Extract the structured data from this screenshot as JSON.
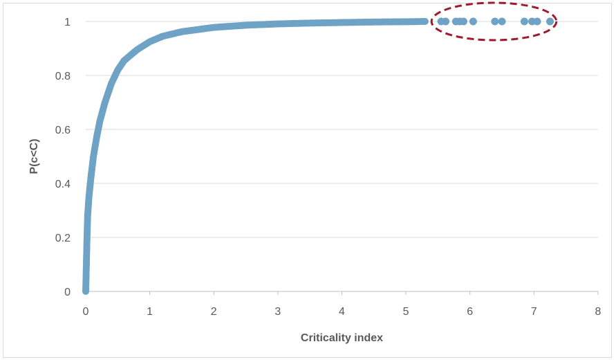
{
  "chart_data": {
    "type": "scatter",
    "title": "",
    "xlabel": "Criticality index",
    "ylabel": "P(c<C)",
    "xlim": [
      0,
      8
    ],
    "ylim": [
      0,
      1
    ],
    "x_ticks": [
      "0",
      "1",
      "2",
      "3",
      "4",
      "5",
      "6",
      "7",
      "8"
    ],
    "y_ticks": [
      "0",
      "0.2",
      "0.4",
      "0.6",
      "0.8",
      "1"
    ],
    "grid": "horizontal",
    "legend": "none",
    "series": [
      {
        "color": "#6ea3c6",
        "curve_points": [
          [
            0.0,
            0.0
          ],
          [
            0.005,
            0.05
          ],
          [
            0.01,
            0.1
          ],
          [
            0.02,
            0.2
          ],
          [
            0.03,
            0.28
          ],
          [
            0.05,
            0.35
          ],
          [
            0.08,
            0.42
          ],
          [
            0.12,
            0.5
          ],
          [
            0.17,
            0.57
          ],
          [
            0.22,
            0.63
          ],
          [
            0.3,
            0.7
          ],
          [
            0.4,
            0.77
          ],
          [
            0.5,
            0.82
          ],
          [
            0.6,
            0.855
          ],
          [
            0.7,
            0.875
          ],
          [
            0.8,
            0.895
          ],
          [
            1.0,
            0.925
          ],
          [
            1.2,
            0.945
          ],
          [
            1.5,
            0.962
          ],
          [
            2.0,
            0.978
          ],
          [
            2.5,
            0.986
          ],
          [
            3.0,
            0.991
          ],
          [
            3.5,
            0.994
          ],
          [
            4.0,
            0.996
          ],
          [
            4.5,
            0.998
          ],
          [
            5.0,
            0.999
          ],
          [
            5.3,
            1.0
          ]
        ],
        "outliers_x": [
          5.55,
          5.62,
          5.78,
          5.84,
          5.9,
          6.05,
          6.39,
          6.5,
          6.85,
          6.97,
          7.05,
          7.25
        ]
      }
    ],
    "annotation": {
      "shape": "dashed-ellipse",
      "color": "#9e1b2f",
      "x_range": [
        5.4,
        7.35
      ],
      "y_center": 1.0
    }
  }
}
